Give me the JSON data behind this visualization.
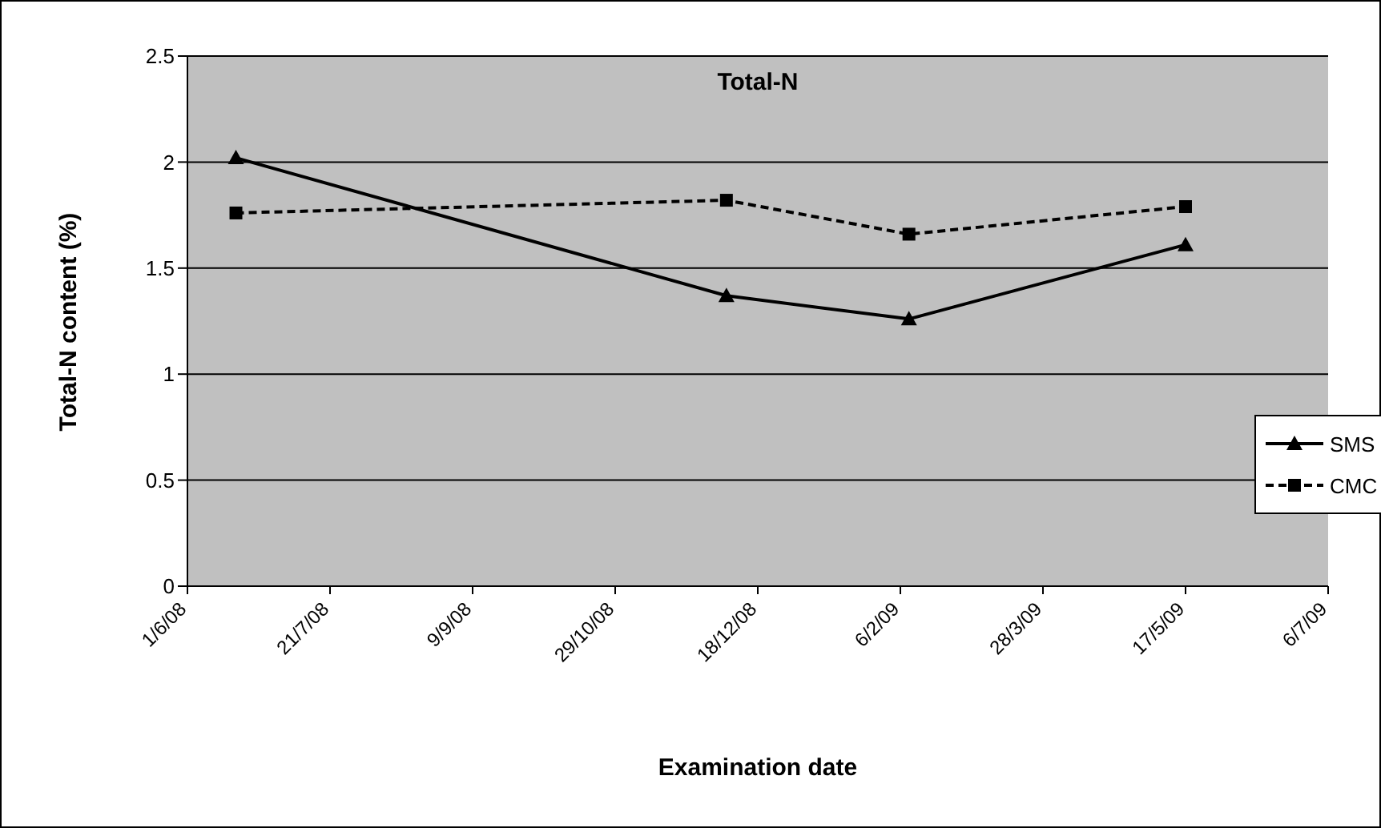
{
  "chart_data": {
    "type": "line",
    "title": "Total-N",
    "xlabel": "Examination date",
    "ylabel": "Total-N content (%)",
    "x": [
      "2008-06-18",
      "2008-12-07",
      "2009-02-09",
      "2009-05-17"
    ],
    "series": [
      {
        "name": "SMS",
        "color": "#000000",
        "values": [
          2.02,
          1.37,
          1.26,
          1.61
        ],
        "marker": "triangle",
        "line_style": "solid"
      },
      {
        "name": "CMC",
        "color": "#000000",
        "values": [
          1.76,
          1.82,
          1.66,
          1.79
        ],
        "marker": "square",
        "line_style": "dashed"
      }
    ],
    "xlim": [
      "2008-06-01",
      "2009-07-06"
    ],
    "xticks": [
      {
        "value": "2008-06-01",
        "label": "1/6/08"
      },
      {
        "value": "2008-07-21",
        "label": "21/7/08"
      },
      {
        "value": "2008-09-09",
        "label": "9/9/08"
      },
      {
        "value": "2008-10-29",
        "label": "29/10/08"
      },
      {
        "value": "2008-12-18",
        "label": "18/12/08"
      },
      {
        "value": "2009-02-06",
        "label": "6/2/09"
      },
      {
        "value": "2009-03-28",
        "label": "28/3/09"
      },
      {
        "value": "2009-05-17",
        "label": "17/5/09"
      },
      {
        "value": "2009-07-06",
        "label": "6/7/09"
      }
    ],
    "ylim": [
      0,
      2.5
    ],
    "yticks": [
      0,
      0.5,
      1,
      1.5,
      2,
      2.5
    ],
    "grid": "y",
    "legend": "right"
  }
}
